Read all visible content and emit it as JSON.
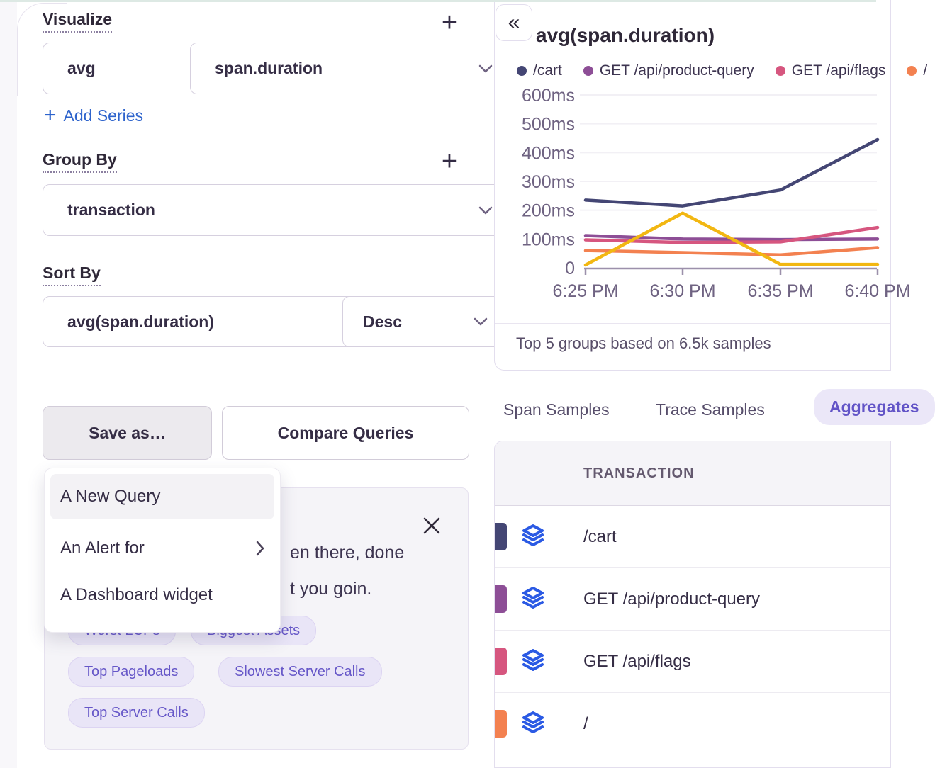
{
  "left_panel": {
    "visualize_title": "Visualize",
    "visualize_add_icon": "+",
    "aggregate_select": "avg",
    "field_select": "span.duration",
    "add_series_icon": "+",
    "add_series_label": "Add Series",
    "group_by_title": "Group By",
    "group_by_add_icon": "+",
    "group_by_select": "transaction",
    "sort_by_title": "Sort By",
    "sort_field_select": "avg(span.duration)",
    "sort_dir_select": "Desc",
    "save_as_button": "Save as…",
    "compare_button": "Compare Queries",
    "save_menu": {
      "item_new_query": "A New Query",
      "item_alert": "An Alert for",
      "item_dashboard": "A Dashboard widget"
    },
    "banner": {
      "visible_text_line1": "en there, done",
      "visible_text_line2": "t you goin.",
      "pills": [
        "Worst LCPs",
        "Biggest Assets",
        "Top Pageloads",
        "Slowest Server Calls",
        "Top Server Calls"
      ]
    }
  },
  "chart_panel": {
    "collapse_icon": "«",
    "title": "avg(span.duration)",
    "footer_note": "Top 5 groups based on 6.5k samples"
  },
  "chart_data": {
    "type": "line",
    "title": "avg(span.duration)",
    "categories": [
      "6:25 PM",
      "6:30 PM",
      "6:35 PM",
      "6:40 PM"
    ],
    "unit": "ms",
    "ylim": [
      0,
      600
    ],
    "yticks": [
      0,
      100,
      200,
      300,
      400,
      500,
      600
    ],
    "grid": true,
    "legend_position": "top",
    "series": [
      {
        "name": "/cart",
        "color": "#444674",
        "values": [
          235,
          215,
          270,
          445
        ]
      },
      {
        "name": "GET /api/product-query",
        "color": "#8d4e96",
        "values": [
          112,
          100,
          98,
          100
        ]
      },
      {
        "name": "GET /api/flags",
        "color": "#d6567f",
        "values": [
          97,
          88,
          90,
          140
        ]
      },
      {
        "name": "/",
        "color": "#f38150",
        "values": [
          60,
          53,
          45,
          70
        ]
      },
      {
        "name": "",
        "color": "#f2b712",
        "values": [
          10,
          190,
          12,
          12
        ]
      }
    ]
  },
  "results": {
    "tabs": [
      {
        "label": "Span Samples",
        "active": false
      },
      {
        "label": "Trace Samples",
        "active": false
      },
      {
        "label": "Aggregates",
        "active": true
      }
    ],
    "table": {
      "header": "TRANSACTION",
      "rows": [
        {
          "transaction": "/cart",
          "color": "#444674"
        },
        {
          "transaction": "GET /api/product-query",
          "color": "#8d4e96"
        },
        {
          "transaction": "GET /api/flags",
          "color": "#d6567f"
        },
        {
          "transaction": "/",
          "color": "#f38150"
        }
      ]
    }
  }
}
